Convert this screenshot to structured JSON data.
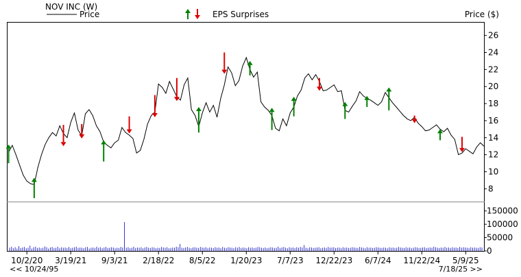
{
  "header": {
    "title": "NOV INC (W)",
    "price_legend_label": "Price",
    "eps_legend_label": "EPS Surprises",
    "y_axis_title": "Price ($)"
  },
  "footer": {
    "start_link": "<< 10/24/95",
    "end_link": "7/18/25 >>"
  },
  "colors": {
    "price_line": "#000000",
    "volume_bar": "#3333cc",
    "eps_up": "#008000",
    "eps_down": "#dd0000",
    "frame": "#000000"
  },
  "chart_data": {
    "type": "line",
    "title": "NOV INC (W)",
    "ylabel": "Price ($)",
    "price_ylim": [
      6.5,
      27.5
    ],
    "price_ticks": [
      8,
      10,
      12,
      14,
      16,
      18,
      20,
      22,
      24,
      26
    ],
    "volume_ylim": [
      0,
      180000
    ],
    "volume_ticks": [
      0,
      50000,
      100000,
      150000
    ],
    "volume_tick_labels": [
      "0",
      "50000",
      "100000",
      "150000"
    ],
    "x_range": [
      "2020-07-20",
      "2025-07-18"
    ],
    "x_ticks": [
      "2020-10-02",
      "2021-03-19",
      "2021-09-03",
      "2022-02-18",
      "2022-08-05",
      "2023-01-20",
      "2023-07-07",
      "2023-12-22",
      "2024-06-07",
      "2024-11-22",
      "2025-05-09"
    ],
    "x_tick_labels": [
      "10/2/20",
      "3/19/21",
      "9/3/21",
      "2/18/22",
      "8/5/22",
      "1/20/23",
      "7/7/23",
      "12/22/23",
      "6/7/24",
      "11/22/24",
      "5/9/25"
    ],
    "grid": false,
    "series": [
      {
        "name": "Price",
        "points": [
          [
            "2020-07-24",
            12.3
          ],
          [
            "2020-08-07",
            13.1
          ],
          [
            "2020-08-21",
            12.0
          ],
          [
            "2020-09-04",
            10.8
          ],
          [
            "2020-09-18",
            9.6
          ],
          [
            "2020-10-02",
            8.9
          ],
          [
            "2020-10-16",
            8.6
          ],
          [
            "2020-10-30",
            8.5
          ],
          [
            "2020-11-13",
            10.5
          ],
          [
            "2020-11-27",
            12.0
          ],
          [
            "2020-12-11",
            13.2
          ],
          [
            "2020-12-25",
            14.0
          ],
          [
            "2021-01-08",
            14.6
          ],
          [
            "2021-01-22",
            14.2
          ],
          [
            "2021-02-05",
            15.4
          ],
          [
            "2021-02-19",
            14.5
          ],
          [
            "2021-03-05",
            14.0
          ],
          [
            "2021-03-19",
            15.8
          ],
          [
            "2021-04-02",
            16.9
          ],
          [
            "2021-04-16",
            14.9
          ],
          [
            "2021-04-30",
            14.2
          ],
          [
            "2021-05-14",
            16.8
          ],
          [
            "2021-05-28",
            17.3
          ],
          [
            "2021-06-11",
            16.6
          ],
          [
            "2021-06-25",
            15.4
          ],
          [
            "2021-07-09",
            14.7
          ],
          [
            "2021-07-23",
            13.5
          ],
          [
            "2021-08-06",
            13.1
          ],
          [
            "2021-08-20",
            12.8
          ],
          [
            "2021-09-03",
            13.4
          ],
          [
            "2021-09-17",
            13.7
          ],
          [
            "2021-10-01",
            15.2
          ],
          [
            "2021-10-15",
            14.6
          ],
          [
            "2021-10-29",
            14.3
          ],
          [
            "2021-11-12",
            13.9
          ],
          [
            "2021-11-26",
            12.2
          ],
          [
            "2021-12-10",
            12.5
          ],
          [
            "2021-12-24",
            13.8
          ],
          [
            "2022-01-07",
            15.6
          ],
          [
            "2022-01-21",
            16.6
          ],
          [
            "2022-02-04",
            17.0
          ],
          [
            "2022-02-18",
            20.3
          ],
          [
            "2022-03-04",
            19.9
          ],
          [
            "2022-03-18",
            19.2
          ],
          [
            "2022-04-01",
            20.6
          ],
          [
            "2022-04-15",
            19.7
          ],
          [
            "2022-04-29",
            18.8
          ],
          [
            "2022-05-13",
            18.4
          ],
          [
            "2022-05-27",
            20.2
          ],
          [
            "2022-06-10",
            21.0
          ],
          [
            "2022-06-24",
            17.3
          ],
          [
            "2022-07-08",
            16.6
          ],
          [
            "2022-07-22",
            15.3
          ],
          [
            "2022-08-05",
            16.9
          ],
          [
            "2022-08-19",
            18.1
          ],
          [
            "2022-09-02",
            17.0
          ],
          [
            "2022-09-16",
            17.8
          ],
          [
            "2022-09-30",
            16.4
          ],
          [
            "2022-10-14",
            18.6
          ],
          [
            "2022-10-28",
            20.2
          ],
          [
            "2022-11-11",
            22.3
          ],
          [
            "2022-11-25",
            21.6
          ],
          [
            "2022-12-09",
            20.1
          ],
          [
            "2022-12-23",
            20.7
          ],
          [
            "2023-01-06",
            22.4
          ],
          [
            "2023-01-20",
            23.4
          ],
          [
            "2023-02-03",
            22.0
          ],
          [
            "2023-02-17",
            21.1
          ],
          [
            "2023-03-03",
            21.7
          ],
          [
            "2023-03-17",
            18.2
          ],
          [
            "2023-03-31",
            17.6
          ],
          [
            "2023-04-14",
            17.2
          ],
          [
            "2023-04-28",
            16.6
          ],
          [
            "2023-05-12",
            15.1
          ],
          [
            "2023-05-26",
            14.8
          ],
          [
            "2023-06-09",
            16.2
          ],
          [
            "2023-06-23",
            15.4
          ],
          [
            "2023-07-07",
            16.9
          ],
          [
            "2023-07-21",
            17.6
          ],
          [
            "2023-08-04",
            18.9
          ],
          [
            "2023-08-18",
            19.6
          ],
          [
            "2023-09-01",
            21.0
          ],
          [
            "2023-09-15",
            21.5
          ],
          [
            "2023-09-29",
            20.8
          ],
          [
            "2023-10-13",
            21.4
          ],
          [
            "2023-10-27",
            20.6
          ],
          [
            "2023-11-10",
            19.5
          ],
          [
            "2023-11-24",
            19.6
          ],
          [
            "2023-12-08",
            19.9
          ],
          [
            "2023-12-22",
            20.2
          ],
          [
            "2024-01-05",
            19.4
          ],
          [
            "2024-01-19",
            19.5
          ],
          [
            "2024-02-02",
            17.2
          ],
          [
            "2024-02-16",
            17.0
          ],
          [
            "2024-03-01",
            17.7
          ],
          [
            "2024-03-15",
            18.3
          ],
          [
            "2024-03-29",
            19.4
          ],
          [
            "2024-04-12",
            18.9
          ],
          [
            "2024-04-26",
            18.6
          ],
          [
            "2024-05-10",
            18.4
          ],
          [
            "2024-05-24",
            18.1
          ],
          [
            "2024-06-07",
            17.8
          ],
          [
            "2024-06-21",
            18.2
          ],
          [
            "2024-07-05",
            19.3
          ],
          [
            "2024-07-19",
            18.7
          ],
          [
            "2024-08-02",
            18.1
          ],
          [
            "2024-08-16",
            17.6
          ],
          [
            "2024-08-30",
            17.1
          ],
          [
            "2024-09-13",
            16.6
          ],
          [
            "2024-09-27",
            16.2
          ],
          [
            "2024-10-11",
            16.0
          ],
          [
            "2024-10-25",
            16.4
          ],
          [
            "2024-11-08",
            15.7
          ],
          [
            "2024-11-22",
            15.3
          ],
          [
            "2024-12-06",
            14.8
          ],
          [
            "2024-12-20",
            14.9
          ],
          [
            "2025-01-03",
            15.2
          ],
          [
            "2025-01-17",
            15.5
          ],
          [
            "2025-01-31",
            15.0
          ],
          [
            "2025-02-14",
            14.7
          ],
          [
            "2025-02-28",
            15.1
          ],
          [
            "2025-03-14",
            14.3
          ],
          [
            "2025-03-28",
            13.8
          ],
          [
            "2025-04-11",
            12.0
          ],
          [
            "2025-04-25",
            12.2
          ],
          [
            "2025-05-09",
            12.7
          ],
          [
            "2025-05-23",
            12.4
          ],
          [
            "2025-06-06",
            12.1
          ],
          [
            "2025-06-20",
            12.9
          ],
          [
            "2025-07-04",
            13.4
          ],
          [
            "2025-07-18",
            13.0
          ]
        ]
      }
    ],
    "eps_surprises": [
      {
        "date": "2020-07-24",
        "direction": "up",
        "from": 11.0,
        "to": 13.2
      },
      {
        "date": "2020-10-30",
        "direction": "up",
        "from": 6.9,
        "to": 9.3
      },
      {
        "date": "2021-02-19",
        "direction": "down",
        "from": 15.5,
        "to": 13.0
      },
      {
        "date": "2021-04-30",
        "direction": "down",
        "from": 15.6,
        "to": 13.9
      },
      {
        "date": "2021-07-23",
        "direction": "up",
        "from": 11.2,
        "to": 13.7
      },
      {
        "date": "2021-10-29",
        "direction": "down",
        "from": 16.5,
        "to": 14.5
      },
      {
        "date": "2022-02-04",
        "direction": "down",
        "from": 19.0,
        "to": 16.4
      },
      {
        "date": "2022-04-29",
        "direction": "down",
        "from": 21.0,
        "to": 18.3
      },
      {
        "date": "2022-07-22",
        "direction": "up",
        "from": 14.6,
        "to": 17.6
      },
      {
        "date": "2022-10-28",
        "direction": "down",
        "from": 24.0,
        "to": 21.5
      },
      {
        "date": "2023-02-03",
        "direction": "up",
        "from": 21.3,
        "to": 23.0
      },
      {
        "date": "2023-04-28",
        "direction": "up",
        "from": 14.9,
        "to": 17.5
      },
      {
        "date": "2023-07-21",
        "direction": "up",
        "from": 16.5,
        "to": 18.8
      },
      {
        "date": "2023-10-27",
        "direction": "down",
        "from": 21.0,
        "to": 19.5
      },
      {
        "date": "2024-02-02",
        "direction": "up",
        "from": 16.2,
        "to": 18.2
      },
      {
        "date": "2024-04-26",
        "direction": "up",
        "from": 17.6,
        "to": 18.9
      },
      {
        "date": "2024-07-19",
        "direction": "up",
        "from": 17.2,
        "to": 19.9
      },
      {
        "date": "2024-10-25",
        "direction": "down",
        "from": 16.6,
        "to": 15.7
      },
      {
        "date": "2025-01-31",
        "direction": "up",
        "from": 13.7,
        "to": 15.0
      },
      {
        "date": "2025-04-25",
        "direction": "down",
        "from": 14.1,
        "to": 12.3
      }
    ],
    "volume": [
      12000,
      16000,
      10000,
      14000,
      9000,
      18000,
      11000,
      13000,
      15000,
      10000,
      12000,
      20000,
      9000,
      14000,
      16000,
      11000,
      13000,
      10000,
      12000,
      17000,
      14000,
      9000,
      13000,
      15000,
      11000,
      12000,
      16000,
      10000,
      14000,
      12000,
      13000,
      11000,
      15000,
      10000,
      12000,
      14000,
      16000,
      11000,
      13000,
      12000,
      10000,
      14000,
      15000,
      9000,
      12000,
      13000,
      11000,
      16000,
      12000,
      14000,
      10000,
      13000,
      15000,
      11000,
      12000,
      14000,
      13000,
      10000,
      12000,
      11000,
      15000,
      13000,
      108000,
      12000,
      14000,
      10000,
      12000,
      16000,
      11000,
      13000,
      12000,
      14000,
      10000,
      13000,
      15000,
      12000,
      11000,
      14000,
      13000,
      10000,
      12000,
      11000,
      15000,
      13000,
      12000,
      14000,
      10000,
      11000,
      13000,
      12000,
      16000,
      14000,
      26000,
      12000,
      11000,
      13000,
      15000,
      12000,
      10000,
      13000,
      14000,
      12000,
      11000,
      15000,
      13000,
      12000,
      14000,
      10000,
      13000,
      12000,
      11000,
      14000,
      12000,
      13000,
      10000,
      15000,
      12000,
      11000,
      14000,
      13000,
      12000,
      10000,
      14000,
      12000,
      15000,
      11000,
      13000,
      12000,
      10000,
      14000,
      12000,
      13000,
      11000,
      12000,
      15000,
      14000,
      12000,
      11000,
      13000,
      10000,
      12000,
      14000,
      13000,
      11000,
      12000,
      16000,
      11000,
      13000,
      15000,
      12000,
      10000,
      14000,
      12000,
      13000,
      11000,
      14000,
      12000,
      15000,
      13000,
      22000,
      12000,
      10000,
      14000,
      13000,
      11000,
      12000,
      13000,
      14000,
      10000,
      12000,
      13000,
      11000,
      15000,
      12000,
      13000,
      14000,
      11000,
      12000,
      13000,
      10000,
      14000,
      12000,
      13000,
      11000,
      12000,
      14000,
      13000,
      12000,
      11000,
      15000,
      13000,
      12000,
      10000,
      14000,
      12000,
      13000,
      11000,
      12000,
      14000,
      13000,
      12000,
      11000,
      13000,
      12000,
      10000,
      14000,
      12000,
      13000,
      11000,
      12000,
      15000,
      13000,
      12000,
      11000,
      14000,
      12000,
      13000,
      10000,
      12000,
      14000,
      13000,
      11000,
      12000,
      13000,
      14000,
      11000,
      12000,
      13000,
      12000,
      16000,
      14000,
      12000,
      11000,
      13000,
      12000,
      15000,
      12000,
      13000,
      11000,
      14000,
      12000,
      13000,
      11000,
      15000,
      12000,
      14000,
      13000,
      12000,
      11000,
      14000,
      12000,
      13000,
      12000,
      11000,
      14000,
      13000
    ]
  }
}
